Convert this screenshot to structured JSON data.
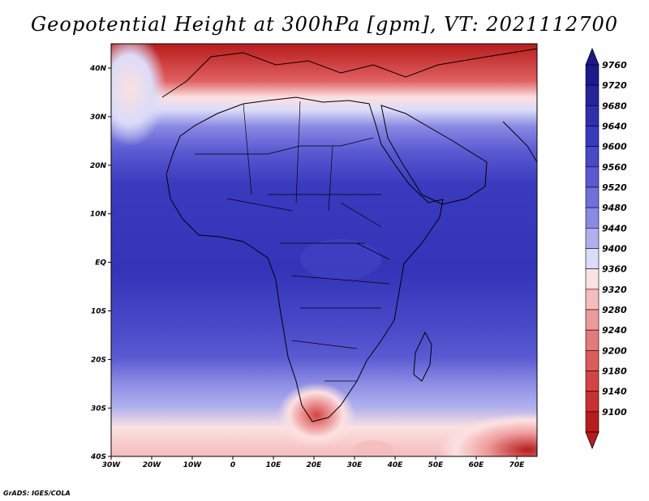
{
  "title": "Geopotential Height at 300hPa [gpm], VT: 2021112700",
  "credit": "GrADS: IGES/COLA",
  "lon_labels": [
    "30W",
    "20W",
    "10W",
    "0",
    "10E",
    "20E",
    "30E",
    "40E",
    "50E",
    "60E",
    "70E"
  ],
  "lat_labels": [
    "40N",
    "30N",
    "20N",
    "10N",
    "EQ",
    "10S",
    "20S",
    "30S",
    "40S"
  ],
  "colorbar": {
    "labels": [
      "9760",
      "9720",
      "9680",
      "9640",
      "9600",
      "9560",
      "9520",
      "9480",
      "9440",
      "9400",
      "9360",
      "9320",
      "9280",
      "9240",
      "9200",
      "9180",
      "9140",
      "9100"
    ],
    "colors": [
      "#1a1a8c",
      "#24249b",
      "#2f2fae",
      "#3a3abe",
      "#4848c8",
      "#5a5ad2",
      "#7070dc",
      "#8a8ae4",
      "#b0b0ee",
      "#dcdcf8",
      "#fbe1e1",
      "#f5bcbc",
      "#ee9a9a",
      "#e47a7a",
      "#dc5c5c",
      "#d44444",
      "#c93030",
      "#b81c1c"
    ]
  }
}
